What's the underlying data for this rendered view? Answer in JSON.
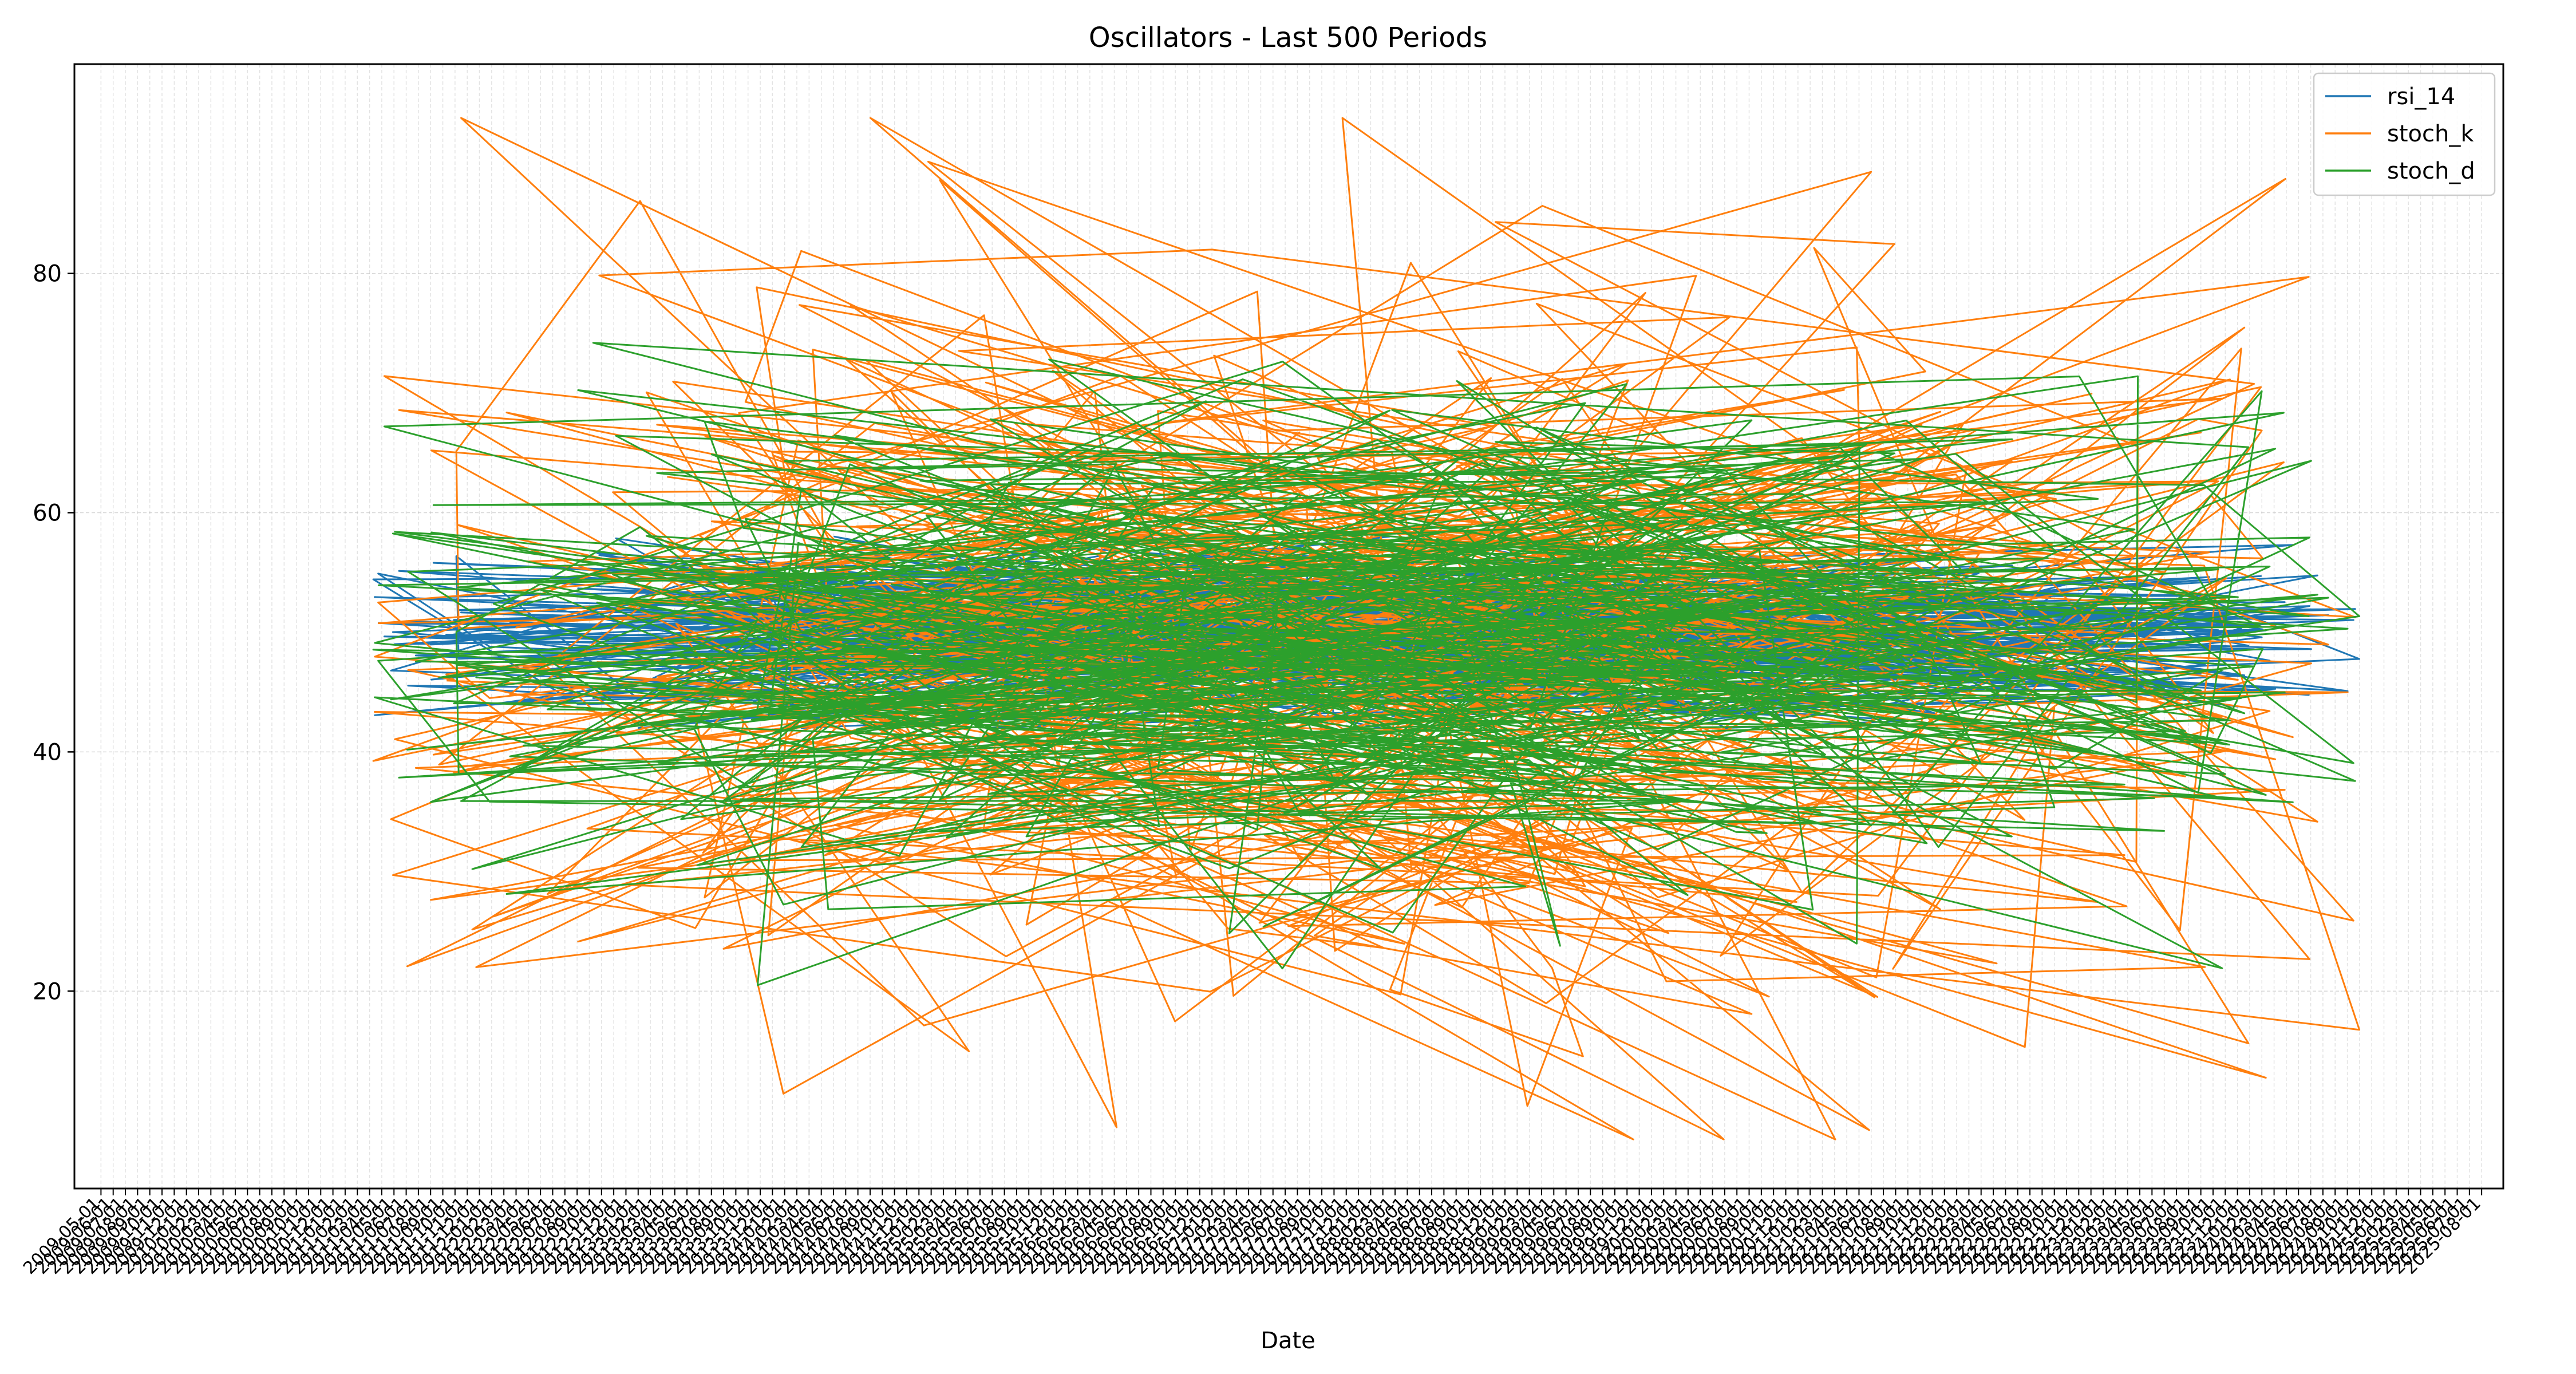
{
  "chart_data": {
    "type": "line",
    "title": "Oscillators - Last 500 Periods",
    "xlabel": "Date",
    "ylabel": "",
    "x_range": [
      "2009-05-01",
      "2025-08-01"
    ],
    "ylim": [
      3.5,
      97.5
    ],
    "y_ticks": [
      20,
      40,
      60,
      80
    ],
    "x_ticks": {
      "start": "2009-05-01",
      "end": "2025-08-01",
      "step_months": 1
    },
    "grid": true,
    "legend_position": "upper-right",
    "series_visible_range": {
      "x_start": "2011-03-01",
      "x_end": "2024-10-01",
      "points": 500
    },
    "series": [
      {
        "name": "rsi_14",
        "color": "#1f77b4",
        "center": 50.0,
        "spread": 3.5,
        "min": 42.0,
        "max": 58.0
      },
      {
        "name": "stoch_k",
        "color": "#ff7f0e",
        "center": 49.5,
        "spread": 18.0,
        "min": 7.6,
        "max": 93.0
      },
      {
        "name": "stoch_d",
        "color": "#2ca02c",
        "center": 49.5,
        "spread": 10.0,
        "min": 20.5,
        "max": 74.2
      }
    ]
  }
}
